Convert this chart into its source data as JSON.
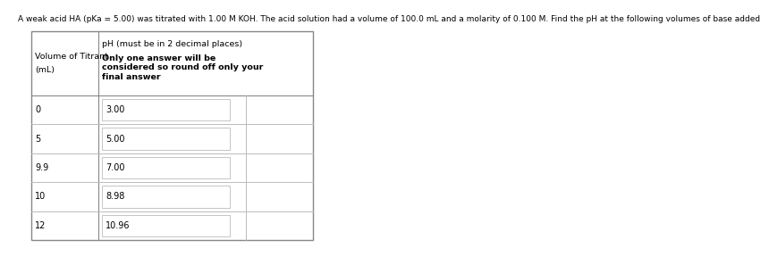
{
  "title": "A weak acid HA (pKa = 5.00) was titrated with 1.00 M KOH. The acid solution had a volume of 100.0 mL and a molarity of 0.100 M. Find the pH at the following volumes of base added",
  "col1_header_line1": "Volume of Titrant",
  "col1_header_line2": "(mL)",
  "col2_header_line1": "pH (must be in 2 decimal places)",
  "col2_header_line2": "Only one answer will be\nconsidered so round off only your\nfinal answer",
  "rows": [
    {
      "volume": "0",
      "pH": "3.00"
    },
    {
      "volume": "5",
      "pH": "5.00"
    },
    {
      "volume": "9.9",
      "pH": "7.00"
    },
    {
      "volume": "10",
      "pH": "8.98"
    },
    {
      "volume": "12",
      "pH": "10.96"
    }
  ],
  "bg_color": "#ffffff",
  "outer_border_color": "#888888",
  "inner_line_color": "#bbbbbb",
  "input_box_border": "#bbbbbb",
  "text_color": "#000000",
  "title_fontsize": 6.5,
  "header_fontsize": 6.8,
  "cell_fontsize": 7.0
}
